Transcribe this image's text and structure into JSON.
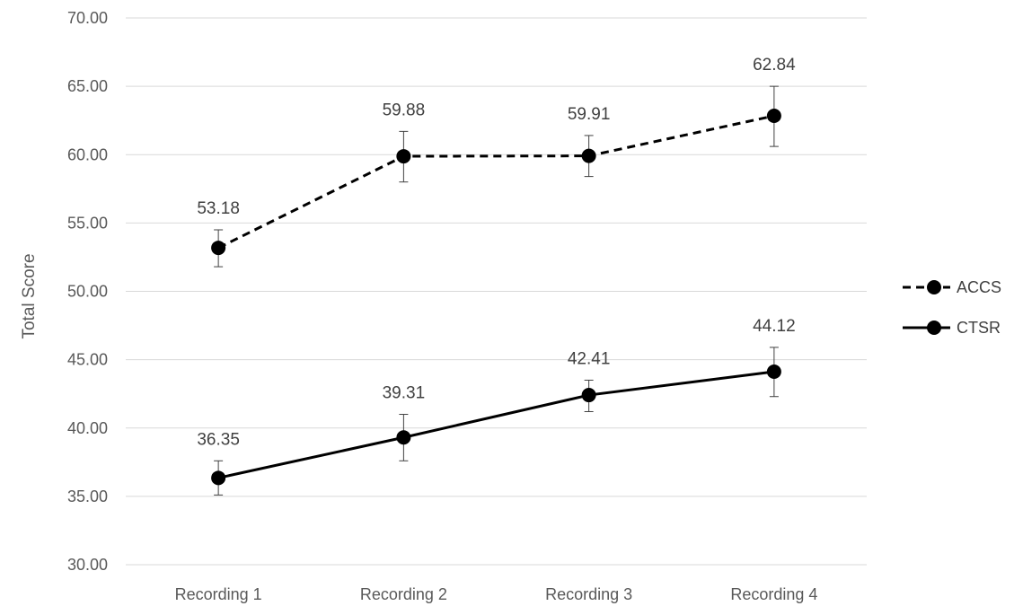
{
  "chart_data": {
    "type": "line",
    "categories": [
      "Recording 1",
      "Recording 2",
      "Recording 3",
      "Recording 4"
    ],
    "series": [
      {
        "name": "ACCS",
        "values": [
          53.18,
          59.88,
          59.91,
          62.84
        ],
        "labels": [
          "53.18",
          "59.88",
          "59.91",
          "62.84"
        ],
        "error_low": [
          51.8,
          58.0,
          58.4,
          60.6
        ],
        "error_high": [
          54.5,
          61.7,
          61.4,
          65.0
        ],
        "line_style": "dashed",
        "color": "#000000"
      },
      {
        "name": "CTSR",
        "values": [
          36.35,
          39.31,
          42.41,
          44.12
        ],
        "labels": [
          "36.35",
          "39.31",
          "42.41",
          "44.12"
        ],
        "error_low": [
          35.1,
          37.6,
          41.2,
          42.3
        ],
        "error_high": [
          37.6,
          41.0,
          43.5,
          45.9
        ],
        "line_style": "solid",
        "color": "#000000"
      }
    ],
    "ylabel": "Total Score",
    "xlabel": "",
    "ylim": [
      30,
      70
    ],
    "yticks": [
      "30.00",
      "35.00",
      "40.00",
      "45.00",
      "50.00",
      "55.00",
      "60.00",
      "65.00",
      "70.00"
    ],
    "grid": true,
    "legend": "right"
  }
}
